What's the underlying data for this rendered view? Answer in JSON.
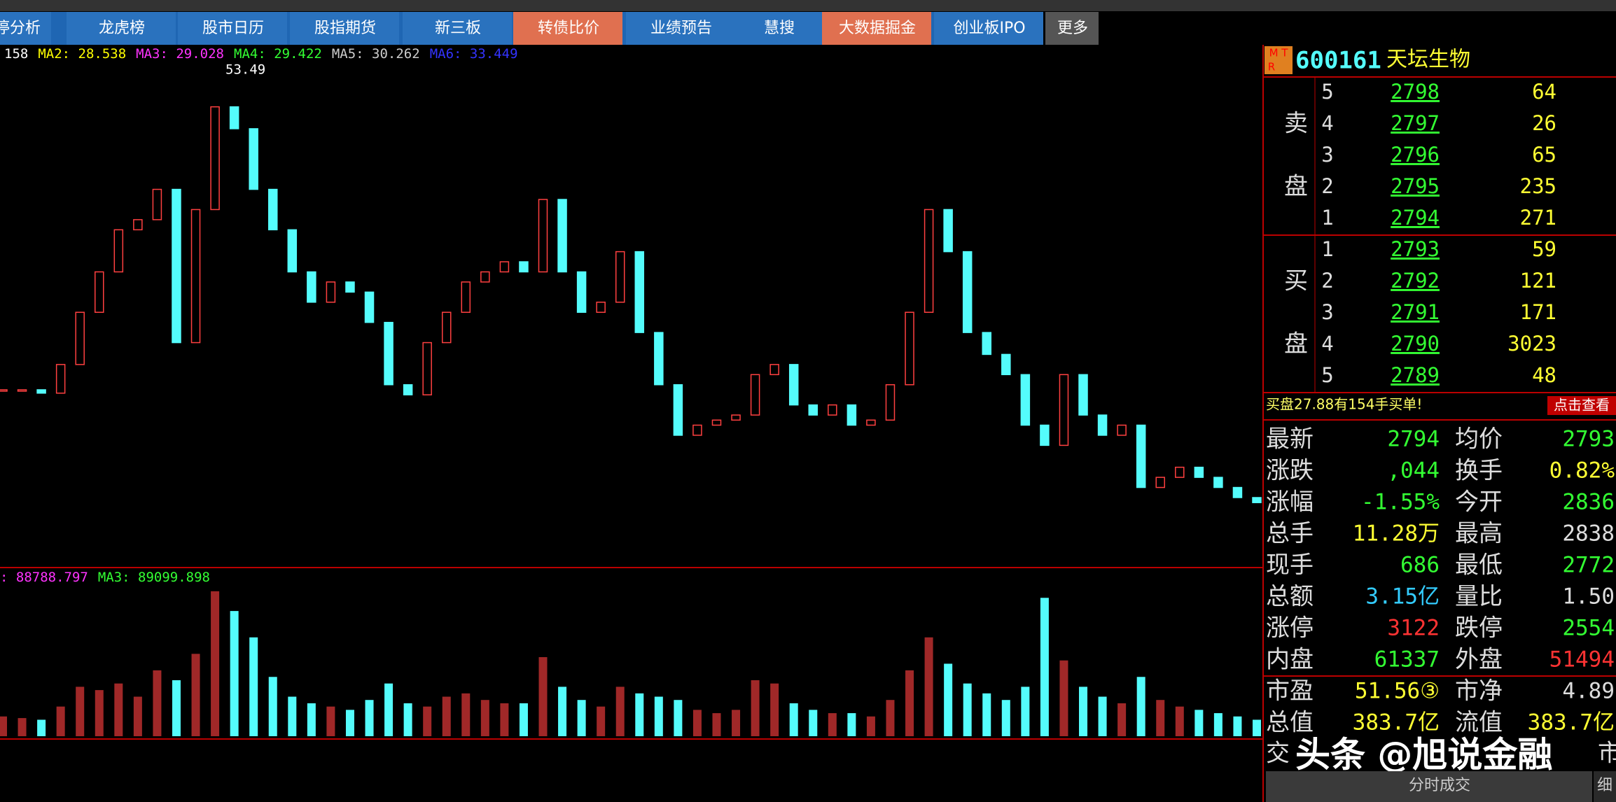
{
  "menu": [
    {
      "label": "停分析",
      "highlight": false
    },
    {
      "label": "龙虎榜",
      "highlight": false
    },
    {
      "label": "股市日历",
      "highlight": false
    },
    {
      "label": "股指期货",
      "highlight": false
    },
    {
      "label": "新三板",
      "highlight": false
    },
    {
      "label": "转债比价",
      "highlight": true
    },
    {
      "label": "业绩预告",
      "highlight": false
    },
    {
      "label": "慧搜",
      "highlight": false
    },
    {
      "label": "大数据掘金",
      "highlight": true
    },
    {
      "label": "创业板IPO",
      "highlight": false
    },
    {
      "label": "更多",
      "highlight": false
    }
  ],
  "ma_legend": [
    {
      "label": "158",
      "color": "#ffffff"
    },
    {
      "label": "MA2: 28.538",
      "color": "#ffff00"
    },
    {
      "label": "MA3: 29.028",
      "color": "#ff33ff"
    },
    {
      "label": "MA4: 29.422",
      "color": "#33ff33"
    },
    {
      "label": "MA5: 30.262",
      "color": "#cccccc"
    },
    {
      "label": "MA6: 33.449",
      "color": "#3333ff"
    }
  ],
  "peak_label": "53.49",
  "vol_legend": [
    {
      "label": ": 88788.797",
      "color": "#ff33ff"
    },
    {
      "label": "MA3: 89099.898",
      "color": "#33ff33"
    }
  ],
  "chart": {
    "ylim": [
      25,
      55
    ],
    "closes": [
      34.6,
      34.6,
      34.4,
      36.1,
      39.2,
      41.6,
      44.1,
      44.7,
      46.5,
      37.4,
      45.3,
      51.4,
      50.1,
      46.5,
      44.1,
      41.6,
      39.8,
      41.0,
      40.4,
      38.6,
      34.9,
      34.3,
      37.4,
      39.2,
      41.0,
      41.6,
      42.2,
      41.6,
      45.9,
      41.6,
      39.2,
      39.8,
      42.8,
      38.0,
      34.9,
      31.9,
      32.5,
      32.8,
      33.1,
      35.5,
      36.1,
      33.7,
      33.1,
      33.7,
      32.5,
      32.8,
      34.9,
      39.2,
      45.3,
      42.8,
      38.0,
      36.7,
      35.5,
      32.5,
      31.3,
      35.5,
      33.1,
      31.9,
      32.5,
      28.8,
      29.4,
      30.0,
      29.4,
      28.8,
      28.2,
      27.9
    ],
    "vol_ylim": [
      0,
      480000
    ],
    "volumes": [
      60000,
      55000,
      50000,
      90000,
      150000,
      140000,
      160000,
      120000,
      200000,
      170000,
      250000,
      440000,
      380000,
      300000,
      180000,
      120000,
      100000,
      90000,
      80000,
      110000,
      160000,
      100000,
      90000,
      120000,
      130000,
      110000,
      100000,
      100000,
      240000,
      150000,
      110000,
      90000,
      150000,
      130000,
      120000,
      110000,
      80000,
      70000,
      80000,
      170000,
      160000,
      100000,
      80000,
      70000,
      70000,
      60000,
      110000,
      200000,
      300000,
      220000,
      160000,
      130000,
      110000,
      150000,
      420000,
      230000,
      150000,
      120000,
      100000,
      180000,
      110000,
      90000,
      80000,
      70000,
      60000,
      50000
    ]
  },
  "quote": {
    "logo_top": "M T",
    "logo_bottom": "R",
    "code": "600161",
    "name": "天坛生物"
  },
  "sell_label": [
    "卖",
    "盘"
  ],
  "buy_label": [
    "买",
    "盘"
  ],
  "sell": [
    {
      "level": "5",
      "price": "2798",
      "volume": "64"
    },
    {
      "level": "4",
      "price": "2797",
      "volume": "26"
    },
    {
      "level": "3",
      "price": "2796",
      "volume": "65"
    },
    {
      "level": "2",
      "price": "2795",
      "volume": "235"
    },
    {
      "level": "1",
      "price": "2794",
      "volume": "271"
    }
  ],
  "buy": [
    {
      "level": "1",
      "price": "2793",
      "volume": "59"
    },
    {
      "level": "2",
      "price": "2792",
      "volume": "121"
    },
    {
      "level": "3",
      "price": "2791",
      "volume": "171"
    },
    {
      "level": "4",
      "price": "2790",
      "volume": "3023"
    },
    {
      "level": "5",
      "price": "2789",
      "volume": "48"
    }
  ],
  "notice": {
    "text": "买盘27.88有154手买单!",
    "button": "点击查看"
  },
  "stats": [
    [
      {
        "label": "最新",
        "value": "2794",
        "color": "#33ff33"
      },
      {
        "label": "均价",
        "value": "2793",
        "color": "#33ff33"
      }
    ],
    [
      {
        "label": "涨跌",
        "value": ",044",
        "color": "#33ff33"
      },
      {
        "label": "换手",
        "value": "0.82%",
        "color": "#ffff33"
      }
    ],
    [
      {
        "label": "涨幅",
        "value": "-1.55%",
        "color": "#33ff33"
      },
      {
        "label": "今开",
        "value": "2836",
        "color": "#33ff33"
      }
    ],
    [
      {
        "label": "总手",
        "value": "11.28万",
        "color": "#ffff33"
      },
      {
        "label": "最高",
        "value": "2838",
        "color": "#dddddd"
      }
    ],
    [
      {
        "label": "现手",
        "value": "686",
        "color": "#33ff33"
      },
      {
        "label": "最低",
        "value": "2772",
        "color": "#33ff33"
      }
    ],
    [
      {
        "label": "总额",
        "value": "3.15亿",
        "color": "#33ccff"
      },
      {
        "label": "量比",
        "value": "1.50",
        "color": "#dddddd"
      }
    ],
    [
      {
        "label": "涨停",
        "value": "3122",
        "color": "#ff3333"
      },
      {
        "label": "跌停",
        "value": "2554",
        "color": "#33ff33"
      }
    ],
    [
      {
        "label": "内盘",
        "value": "61337",
        "color": "#33ff33"
      },
      {
        "label": "外盘",
        "value": "51494",
        "color": "#ff3333"
      }
    ],
    [
      {
        "label": "市盈",
        "value": "51.56③",
        "color": "#ffff33"
      },
      {
        "label": "市净",
        "value": "4.89",
        "color": "#dddddd"
      }
    ],
    [
      {
        "label": "总值",
        "value": "383.7亿",
        "color": "#ffff33"
      },
      {
        "label": "流值",
        "value": "383.7亿",
        "color": "#ffff33"
      }
    ]
  ],
  "trade_label": "交",
  "market_label": "市",
  "watermark": "头条 @旭说金融",
  "bottom_tab": "分时成交",
  "side_tab": "细"
}
